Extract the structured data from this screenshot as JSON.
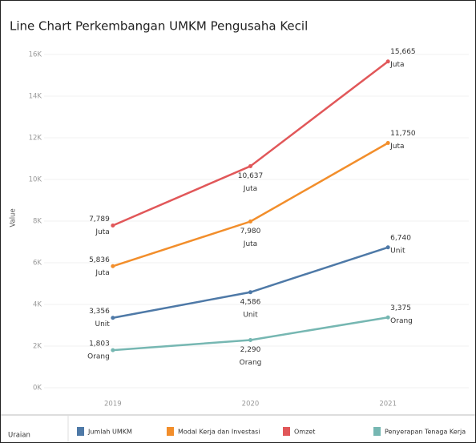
{
  "chart_data": {
    "type": "line",
    "title": "Line Chart Perkembangan UMKM Pengusaha Kecil",
    "y_label": "Value",
    "legend_title": "Uraian",
    "categories": [
      "2019",
      "2020",
      "2021"
    ],
    "ylim": [
      -500,
      16500
    ],
    "yticks": [
      {
        "value": 0,
        "label": "0K"
      },
      {
        "value": 2000,
        "label": "2K"
      },
      {
        "value": 4000,
        "label": "4K"
      },
      {
        "value": 6000,
        "label": "6K"
      },
      {
        "value": 8000,
        "label": "8K"
      },
      {
        "value": 10000,
        "label": "10K"
      },
      {
        "value": 12000,
        "label": "12K"
      },
      {
        "value": 14000,
        "label": "14K"
      },
      {
        "value": 16000,
        "label": "16K"
      }
    ],
    "grid": true,
    "series": [
      {
        "name": "Jumlah UMKM",
        "color": "#4e79a7",
        "values": [
          3356,
          4586,
          6740
        ],
        "value_labels": [
          "3,356",
          "4,586",
          "6,740"
        ],
        "unit": "Unit"
      },
      {
        "name": "Modal Kerja dan Investasi",
        "color": "#f28e2b",
        "values": [
          5836,
          7980,
          11750
        ],
        "value_labels": [
          "5,836",
          "7,980",
          "11,750"
        ],
        "unit": "Juta"
      },
      {
        "name": "Omzet",
        "color": "#e15759",
        "values": [
          7789,
          10637,
          15665
        ],
        "value_labels": [
          "7,789",
          "10,637",
          "15,665"
        ],
        "unit": "Juta"
      },
      {
        "name": "Penyerapan Tenaga Kerja",
        "color": "#76b7b2",
        "values": [
          1803,
          2290,
          3375
        ],
        "value_labels": [
          "1,803",
          "2,290",
          "3,375"
        ],
        "unit": "Orang"
      }
    ]
  }
}
